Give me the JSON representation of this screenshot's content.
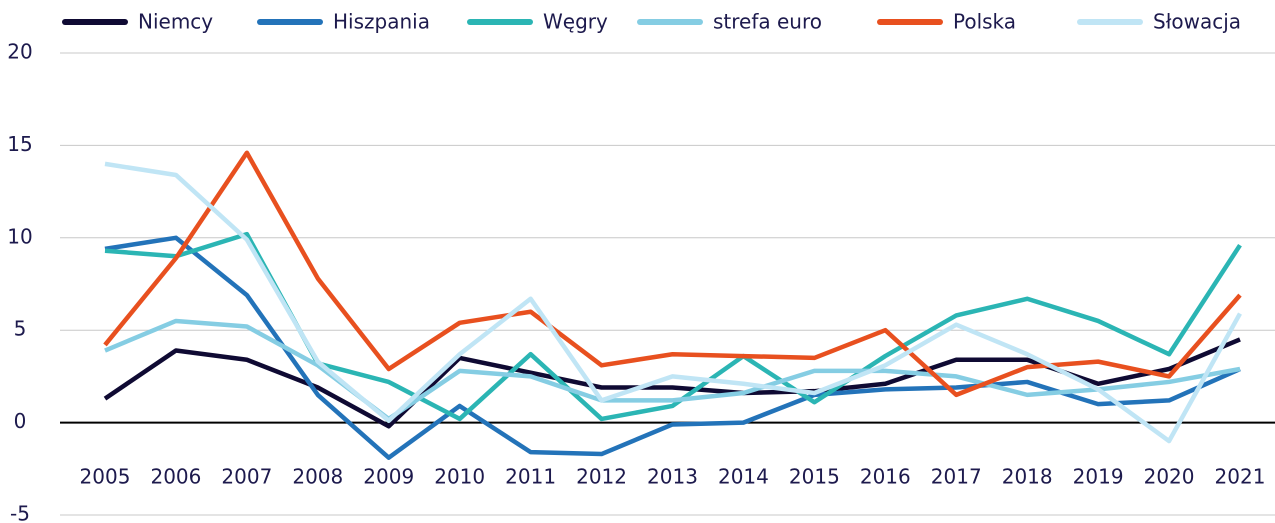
{
  "chart_data": {
    "type": "line",
    "categories": [
      "2005",
      "2006",
      "2007",
      "2008",
      "2009",
      "2010",
      "2011",
      "2012",
      "2013",
      "2014",
      "2015",
      "2016",
      "2017",
      "2018",
      "2019",
      "2020",
      "2021"
    ],
    "series": [
      {
        "name": "Niemcy",
        "color": "#0f0a33",
        "values": [
          1.3,
          3.9,
          3.4,
          1.9,
          -0.2,
          3.5,
          2.7,
          1.9,
          1.9,
          1.6,
          1.7,
          2.1,
          3.4,
          3.4,
          2.1,
          2.9,
          4.5
        ]
      },
      {
        "name": "Hiszpania",
        "color": "#2373b9",
        "values": [
          9.4,
          10.0,
          6.9,
          1.5,
          -1.9,
          0.9,
          -1.6,
          -1.7,
          -0.1,
          0.0,
          1.5,
          1.8,
          1.9,
          2.2,
          1.0,
          1.2,
          2.9
        ]
      },
      {
        "name": "Węgry",
        "color": "#2bb5b4",
        "values": [
          9.3,
          9.0,
          10.2,
          3.2,
          2.2,
          0.2,
          3.7,
          0.2,
          0.9,
          3.6,
          1.1,
          3.6,
          5.8,
          6.7,
          5.5,
          3.7,
          9.6
        ]
      },
      {
        "name": "strefa euro",
        "color": "#85cde3",
        "values": [
          3.9,
          5.5,
          5.2,
          3.1,
          0.2,
          2.8,
          2.5,
          1.2,
          1.2,
          1.6,
          2.8,
          2.8,
          2.5,
          1.5,
          1.8,
          2.2,
          2.9
        ]
      },
      {
        "name": "Polska",
        "color": "#e8501f",
        "values": [
          4.2,
          8.9,
          14.6,
          7.8,
          2.9,
          5.4,
          6.0,
          3.1,
          3.7,
          3.6,
          3.5,
          5.0,
          1.5,
          3.0,
          3.3,
          2.5,
          6.9
        ]
      },
      {
        "name": "Słowacja",
        "color": "#c0e5f5",
        "values": [
          14.0,
          13.4,
          9.9,
          3.3,
          0.1,
          3.7,
          6.7,
          1.2,
          2.5,
          2.1,
          1.6,
          3.1,
          5.3,
          3.7,
          1.8,
          -1.0,
          5.9
        ]
      }
    ],
    "ylim": [
      -5,
      20
    ],
    "yticks": [
      -5,
      0,
      5,
      10,
      15,
      20
    ],
    "grid": true,
    "legend": "top"
  }
}
